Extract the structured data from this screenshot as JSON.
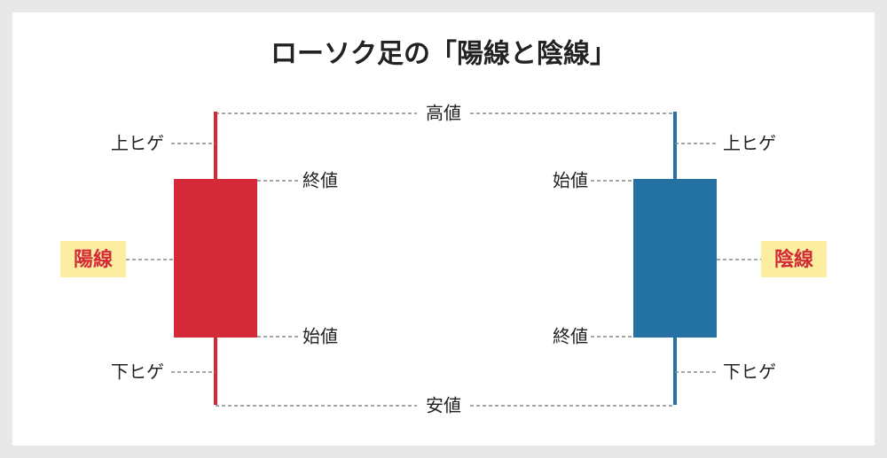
{
  "title": "ローソク足の「陽線と陰線」",
  "high_label": "高値",
  "low_label": "安値",
  "bullish": {
    "name": "陽線",
    "upper_wick": "上ヒゲ",
    "close": "終値",
    "open": "始値",
    "lower_wick": "下ヒゲ"
  },
  "bearish": {
    "name": "陰線",
    "upper_wick": "上ヒゲ",
    "open": "始値",
    "close": "終値",
    "lower_wick": "下ヒゲ"
  }
}
